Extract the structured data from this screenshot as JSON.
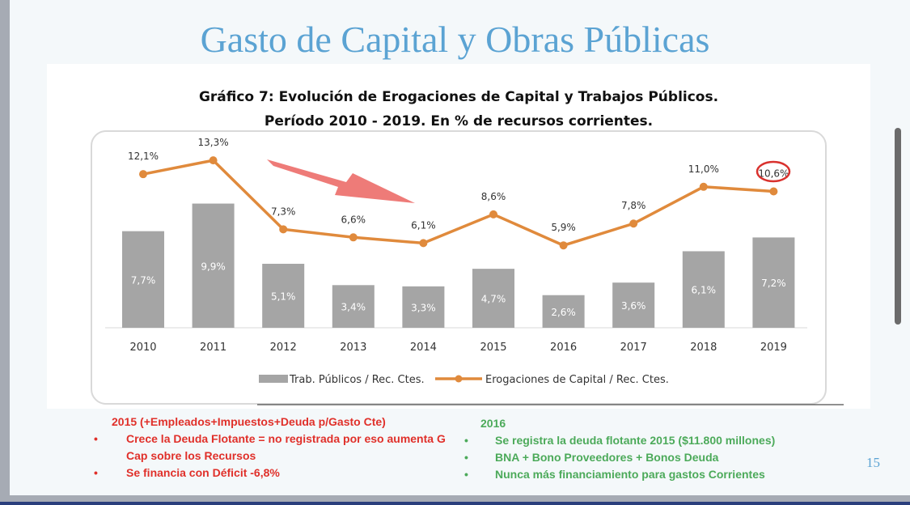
{
  "slide": {
    "title": "Gasto de Capital y Obras Públicas",
    "page_number": "15"
  },
  "chart_data": {
    "type": "bar+line",
    "title_line1": "Gráfico 7: Evolución de Erogaciones de Capital y Trabajos Públicos.",
    "title_line2": "Período 2010 - 2019. En % de recursos corrientes.",
    "categories": [
      "2010",
      "2011",
      "2012",
      "2013",
      "2014",
      "2015",
      "2016",
      "2017",
      "2018",
      "2019"
    ],
    "series": [
      {
        "name": "Trab. Públicos / Rec. Ctes.",
        "type": "bar",
        "color": "#a5a5a5",
        "values": [
          7.7,
          9.9,
          5.1,
          3.4,
          3.3,
          4.7,
          2.6,
          3.6,
          6.1,
          7.2
        ],
        "labels": [
          "7,7%",
          "9,9%",
          "5,1%",
          "3,4%",
          "3,3%",
          "4,7%",
          "2,6%",
          "3,6%",
          "6,1%",
          "7,2%"
        ]
      },
      {
        "name": "Erogaciones de Capital / Rec. Ctes.",
        "type": "line",
        "color": "#e08a3c",
        "values": [
          12.1,
          13.3,
          7.3,
          6.6,
          6.1,
          8.6,
          5.9,
          7.8,
          11.0,
          10.6
        ],
        "labels": [
          "12,1%",
          "13,3%",
          "7,3%",
          "6,6%",
          "6,1%",
          "8,6%",
          "5,9%",
          "7,8%",
          "11,0%",
          "10,6%"
        ]
      }
    ],
    "legend": "bottom",
    "annotations": {
      "down_arrow_color": "#ee7b78",
      "highlight_circle_on": "2019",
      "highlight_color": "#d9322e"
    }
  },
  "notes": {
    "left": {
      "heading": "2015 (+Empleados+Impuestos+Deuda p/Gasto Cte)",
      "bullets": [
        "Crece la Deuda Flotante = no registrada por eso aumenta G Cap sobre los Recursos",
        "Se financia con Déficit -6,8%"
      ]
    },
    "right": {
      "heading": "2016",
      "bullets": [
        "Se registra la deuda flotante 2015  ($11.800 millones)",
        "BNA + Bono Proveedores + Bonos Deuda",
        "Nunca más financiamiento para gastos Corrientes"
      ]
    }
  }
}
